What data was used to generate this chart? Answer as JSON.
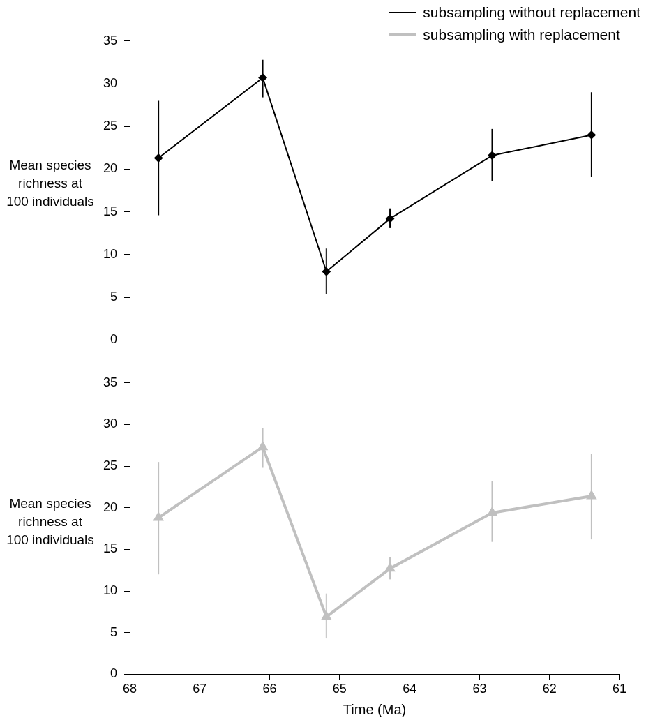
{
  "chart_data": [
    {
      "type": "line",
      "ylabel": "Mean species richness at 100 individuals",
      "xlim": [
        68,
        61
      ],
      "ylim": [
        0,
        35
      ],
      "yticks": [
        0,
        5,
        10,
        15,
        20,
        25,
        30,
        35
      ],
      "x": [
        67.59,
        66.1,
        65.19,
        64.28,
        62.82,
        61.4
      ],
      "tick_labels": "y",
      "grid": false,
      "legend": "top right",
      "marker": "diamond",
      "line_style": "solid",
      "series": [
        {
          "name": "subsampling without replacement",
          "color": "#000000",
          "values": [
            21.3,
            30.7,
            8.0,
            14.2,
            21.6,
            24.0
          ],
          "errors": [
            [
              14.6,
              28.0
            ],
            [
              28.4,
              32.8
            ],
            [
              5.4,
              10.7
            ],
            [
              13.1,
              15.4
            ],
            [
              18.6,
              24.7
            ],
            [
              19.1,
              29.0
            ]
          ]
        }
      ]
    },
    {
      "type": "line",
      "xlabel": "Time (Ma)",
      "ylabel": "Mean species richness at 100 individuals",
      "xlim": [
        68,
        61
      ],
      "xticks": [
        68,
        67,
        66,
        65,
        64,
        63,
        62,
        61
      ],
      "ylim": [
        0,
        35
      ],
      "yticks": [
        0,
        5,
        10,
        15,
        20,
        25,
        30,
        35
      ],
      "x": [
        67.59,
        66.1,
        65.19,
        64.28,
        62.82,
        61.4
      ],
      "grid": false,
      "legend": "top right",
      "marker": "triangle",
      "line_style": "solid",
      "series": [
        {
          "name": "subsampling with replacement",
          "color": "#c0c0c0",
          "values": [
            18.8,
            27.3,
            6.9,
            12.7,
            19.4,
            21.4
          ],
          "errors": [
            [
              12.0,
              25.5
            ],
            [
              24.8,
              29.6
            ],
            [
              4.3,
              9.7
            ],
            [
              11.4,
              14.1
            ],
            [
              15.9,
              23.2
            ],
            [
              16.2,
              26.5
            ]
          ]
        }
      ]
    }
  ]
}
